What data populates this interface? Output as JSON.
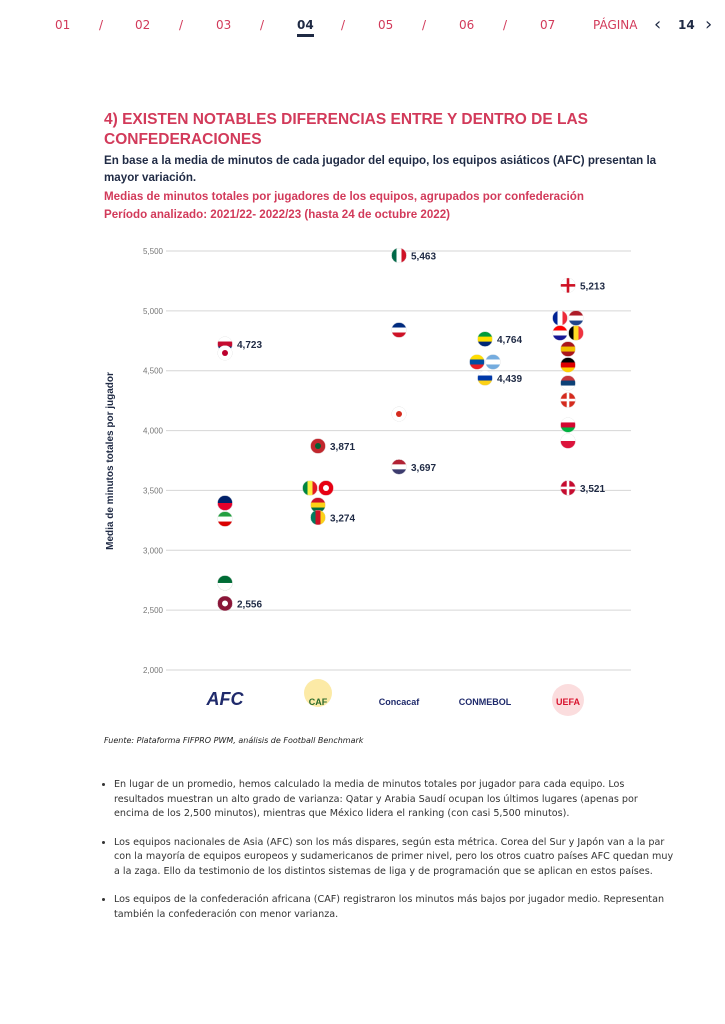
{
  "nav": {
    "items": [
      "01",
      "02",
      "03",
      "04",
      "05",
      "06",
      "07"
    ],
    "current": "04",
    "page_label": "PÁGINA",
    "page_number": "14",
    "sep": "/"
  },
  "heading": "4) EXISTEN NOTABLES DIFERENCIAS ENTRE Y DENTRO DE LAS CONFEDERACIONES",
  "intro": "En base a la media de minutos de cada jugador del equipo, los equipos asiáticos (AFC) presentan la mayor variación.",
  "chart_subtitle": "Medias de minutos totales por jugadores de los equipos, agrupados por confederación",
  "period": "Período analizado: 2021/22- 2022/23 (hasta 24 de octubre 2022)",
  "chart_data": {
    "type": "scatter",
    "ylabel": "Media de minutos totales por jugador",
    "ylim": [
      2000,
      5500
    ],
    "yticks": [
      "5,500",
      "5,000",
      "4,500",
      "4,000",
      "3,500",
      "3,000",
      "2,500",
      "2,000"
    ],
    "grid": true,
    "categories": [
      "AFC",
      "CAF",
      "Concacaf",
      "CONMEBOL",
      "UEFA"
    ],
    "points": [
      {
        "cat": "AFC",
        "team": "Corea del Sur",
        "value": 4723,
        "label": "4,723",
        "flag": "korea"
      },
      {
        "cat": "AFC",
        "team": "Japón",
        "value": 4648,
        "flag": "japan"
      },
      {
        "cat": "AFC",
        "team": "Australia",
        "value": 3395,
        "flag": "australia"
      },
      {
        "cat": "AFC",
        "team": "Irán",
        "value": 3261,
        "flag": "iran"
      },
      {
        "cat": "AFC",
        "team": "Arabia Saudí",
        "value": 2727,
        "flag": "saudi"
      },
      {
        "cat": "AFC",
        "team": "Qatar",
        "value": 2556,
        "label": "2,556",
        "flag": "qatar"
      },
      {
        "cat": "CAF",
        "team": "Marruecos",
        "value": 3871,
        "label": "3,871",
        "flag": "morocco"
      },
      {
        "cat": "CAF",
        "team": "Senegal",
        "value": 3520,
        "flag": "senegal",
        "side": -1
      },
      {
        "cat": "CAF",
        "team": "Túnez",
        "value": 3520,
        "flag": "tunisia",
        "side": 1
      },
      {
        "cat": "CAF",
        "team": "Ghana",
        "value": 3378,
        "flag": "ghana"
      },
      {
        "cat": "CAF",
        "team": "Camerún",
        "value": 3274,
        "label": "3,274",
        "flag": "cameroon"
      },
      {
        "cat": "Concacaf",
        "team": "México",
        "value": 5463,
        "label": "5,463",
        "flag": "mexico"
      },
      {
        "cat": "Concacaf",
        "team": "Costa Rica",
        "value": 4840,
        "flag": "costarica"
      },
      {
        "cat": "Concacaf",
        "team": "Canadá",
        "value": 4138,
        "flag": "canada"
      },
      {
        "cat": "Concacaf",
        "team": "Estados Unidos",
        "value": 3697,
        "label": "3,697",
        "flag": "usa"
      },
      {
        "cat": "CONMEBOL",
        "team": "Brasil",
        "value": 4764,
        "label": "4,764",
        "flag": "brazil"
      },
      {
        "cat": "CONMEBOL",
        "team": "Ecuador",
        "value": 4573,
        "flag": "ecuador",
        "side": -1
      },
      {
        "cat": "CONMEBOL",
        "team": "Argentina",
        "value": 4573,
        "flag": "argentina",
        "side": 1
      },
      {
        "cat": "CONMEBOL",
        "team": "Uruguay",
        "value": 4439,
        "label": "4,439",
        "flag": "uruguay"
      },
      {
        "cat": "UEFA",
        "team": "Inglaterra",
        "value": 5213,
        "label": "5,213",
        "flag": "england"
      },
      {
        "cat": "UEFA",
        "team": "Francia",
        "value": 4940,
        "flag": "france",
        "side": -1
      },
      {
        "cat": "UEFA",
        "team": "Países Bajos",
        "value": 4940,
        "flag": "netherlands",
        "side": 1
      },
      {
        "cat": "UEFA",
        "team": "Croacia",
        "value": 4815,
        "flag": "croatia",
        "side": -1
      },
      {
        "cat": "UEFA",
        "team": "Bélgica",
        "value": 4815,
        "flag": "belgium",
        "side": 1
      },
      {
        "cat": "UEFA",
        "team": "España",
        "value": 4681,
        "flag": "spain"
      },
      {
        "cat": "UEFA",
        "team": "Alemania",
        "value": 4548,
        "flag": "germany"
      },
      {
        "cat": "UEFA",
        "team": "Serbia",
        "value": 4397,
        "flag": "serbia"
      },
      {
        "cat": "UEFA",
        "team": "Suiza",
        "value": 4255,
        "flag": "switzerland"
      },
      {
        "cat": "UEFA",
        "team": "Gales",
        "value": 4047,
        "flag": "wales"
      },
      {
        "cat": "UEFA",
        "team": "Polonia",
        "value": 3913,
        "flag": "poland"
      },
      {
        "cat": "UEFA",
        "team": "Dinamarca",
        "value": 3521,
        "label": "3,521",
        "flag": "denmark"
      }
    ],
    "logos": [
      "AFC",
      "CAF",
      "Concacaf",
      "CONMEBOL",
      "UEFA"
    ]
  },
  "source": "Fuente: Plataforma FIFPRO PWM, análisis de Football Benchmark",
  "bullets": [
    "En lugar de un promedio, hemos calculado la media de minutos totales por jugador para cada equipo. Los resultados muestran un alto grado de varianza: Qatar y Arabia Saudí ocupan los últimos lugares (apenas por encima de los 2,500 minutos), mientras que México lidera el ranking (con casi 5,500 minutos).",
    "Los equipos nacionales de Asia (AFC) son los más dispares, según esta métrica. Corea del Sur y Japón van a la par con la mayoría de equipos europeos y sudamericanos de primer nivel, pero los otros cuatro países AFC quedan muy a la zaga. Ello da testimonio de los distintos sistemas de liga y de programación que se aplican en estos países.",
    "Los equipos de la confederación africana (CAF) registraron los minutos más bajos por jugador medio. Representan también la confederación con menor varianza."
  ],
  "colors": {
    "accent": "#d23a5a",
    "navy": "#1f2a44",
    "grid": "#d6d6d6"
  }
}
